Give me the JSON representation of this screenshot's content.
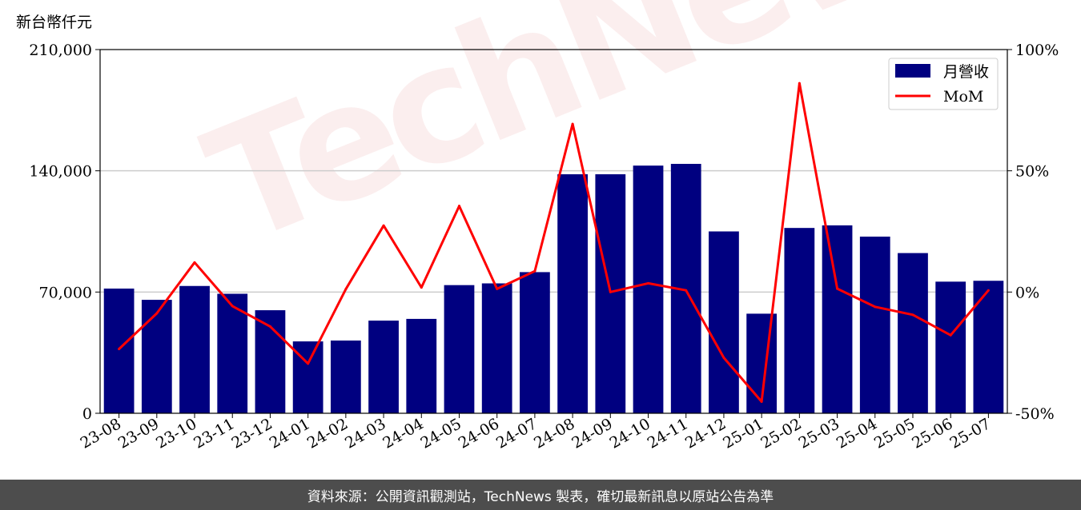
{
  "chart_data": {
    "type": "bar",
    "ylabel": "新台幣仟元",
    "categories": [
      "23-08",
      "23-09",
      "23-10",
      "23-11",
      "23-12",
      "24-01",
      "24-02",
      "24-03",
      "24-04",
      "24-05",
      "24-06",
      "24-07",
      "24-08",
      "24-09",
      "24-10",
      "24-11",
      "24-12",
      "25-01",
      "25-02",
      "25-03",
      "25-04",
      "25-05",
      "25-06",
      "25-07"
    ],
    "series": [
      {
        "name": "月營收",
        "type": "bar",
        "axis": "left",
        "color": "#000080",
        "values": [
          72000,
          65500,
          73500,
          69000,
          59500,
          41500,
          42000,
          53500,
          54500,
          74000,
          75000,
          81500,
          138000,
          138000,
          143000,
          144000,
          105000,
          57500,
          107000,
          108500,
          102000,
          92500,
          76000,
          76500
        ]
      },
      {
        "name": "MoM",
        "type": "line",
        "axis": "right",
        "color": "#ff0000",
        "values": [
          -23.5,
          -8.8,
          12.2,
          -5.8,
          -14.2,
          -29.5,
          1.2,
          27.4,
          1.9,
          35.5,
          1.3,
          8.6,
          69.3,
          0.0,
          3.6,
          0.7,
          -27.1,
          -45.2,
          86.1,
          1.4,
          -6.1,
          -9.4,
          -17.8,
          0.7
        ]
      }
    ],
    "y_left": {
      "min": 0,
      "max": 210000,
      "ticks": [
        "0",
        "70,000",
        "140,000",
        "210,000"
      ]
    },
    "y_right": {
      "min": -50,
      "max": 100,
      "ticks": [
        "-50%",
        "0%",
        "50%",
        "100%"
      ]
    },
    "grid": "horizontal",
    "legend_position": "top-right"
  },
  "watermark": "TechNews",
  "footer": "資料來源：公開資訊觀測站，TechNews 製表，確切最新訊息以原站公告為準"
}
